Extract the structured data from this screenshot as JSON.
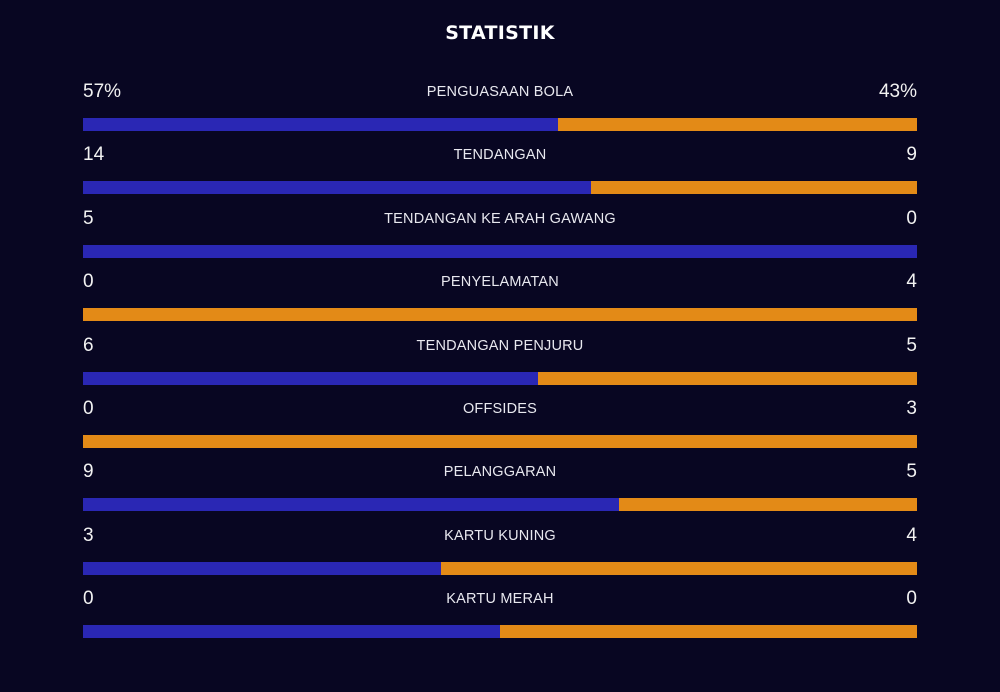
{
  "title": "STATISTIK",
  "colors": {
    "background": "#080622",
    "home": "#2a27b4",
    "away": "#e38a17"
  },
  "stats": [
    {
      "label": "PENGUASAAN BOLA",
      "home": "57%",
      "away": "43%",
      "home_share": 0.57
    },
    {
      "label": "TENDANGAN",
      "home": "14",
      "away": "9",
      "home_share": 0.609
    },
    {
      "label": "TENDANGAN KE ARAH GAWANG",
      "home": "5",
      "away": "0",
      "home_share": 1.0
    },
    {
      "label": "PENYELAMATAN",
      "home": "0",
      "away": "4",
      "home_share": 0.0
    },
    {
      "label": "TENDANGAN PENJURU",
      "home": "6",
      "away": "5",
      "home_share": 0.545
    },
    {
      "label": "OFFSIDES",
      "home": "0",
      "away": "3",
      "home_share": 0.0
    },
    {
      "label": "PELANGGARAN",
      "home": "9",
      "away": "5",
      "home_share": 0.643
    },
    {
      "label": "KARTU KUNING",
      "home": "3",
      "away": "4",
      "home_share": 0.429
    },
    {
      "label": "KARTU MERAH",
      "home": "0",
      "away": "0",
      "home_share": 0.5
    }
  ]
}
